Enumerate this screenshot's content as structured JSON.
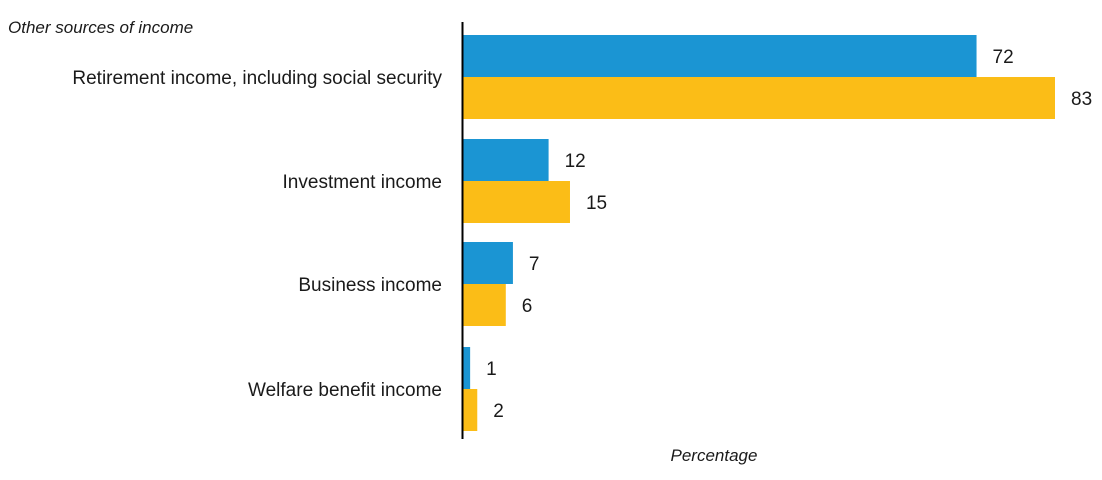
{
  "chart_data": {
    "type": "bar",
    "orientation": "horizontal",
    "title": "Other sources of income",
    "xlabel": "Percentage",
    "ylabel": "",
    "categories": [
      "Retirement income, including social security",
      "Investment income",
      "Business income",
      "Welfare benefit income"
    ],
    "series": [
      {
        "color": "#1b95d3",
        "values": [
          72,
          12,
          7,
          1
        ]
      },
      {
        "color": "#fbbd17",
        "values": [
          83,
          15,
          6,
          2
        ]
      }
    ],
    "xlim": [
      0,
      83
    ],
    "grid": false,
    "legend": "none",
    "data_labels": true
  }
}
